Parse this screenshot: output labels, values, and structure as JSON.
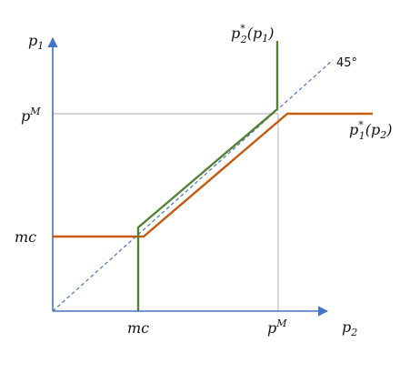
{
  "axes": {
    "y_label": {
      "base": "p",
      "sub": "1"
    },
    "x_label": {
      "base": "p",
      "sub": "2"
    },
    "y_ticks": [
      {
        "id": "pm",
        "base": "p",
        "sup": "M"
      },
      {
        "id": "mc",
        "base": "mc",
        "sup": ""
      }
    ],
    "x_ticks": [
      {
        "id": "mc",
        "base": "mc",
        "sup": ""
      },
      {
        "id": "pm",
        "base": "p",
        "sup": "M"
      }
    ]
  },
  "diagonal_label": "45°",
  "best_response_1": {
    "label": {
      "base": "p",
      "star": "*",
      "sub": "1",
      "arg": "(p",
      "arg_sub": "2",
      "close": ")"
    },
    "color": "#c55a11"
  },
  "best_response_2": {
    "label": {
      "base": "p",
      "star": "*",
      "sub": "2",
      "arg": "(p",
      "arg_sub": "1",
      "close": ")"
    },
    "color": "#548235"
  },
  "axis_color": "#4472c4"
}
